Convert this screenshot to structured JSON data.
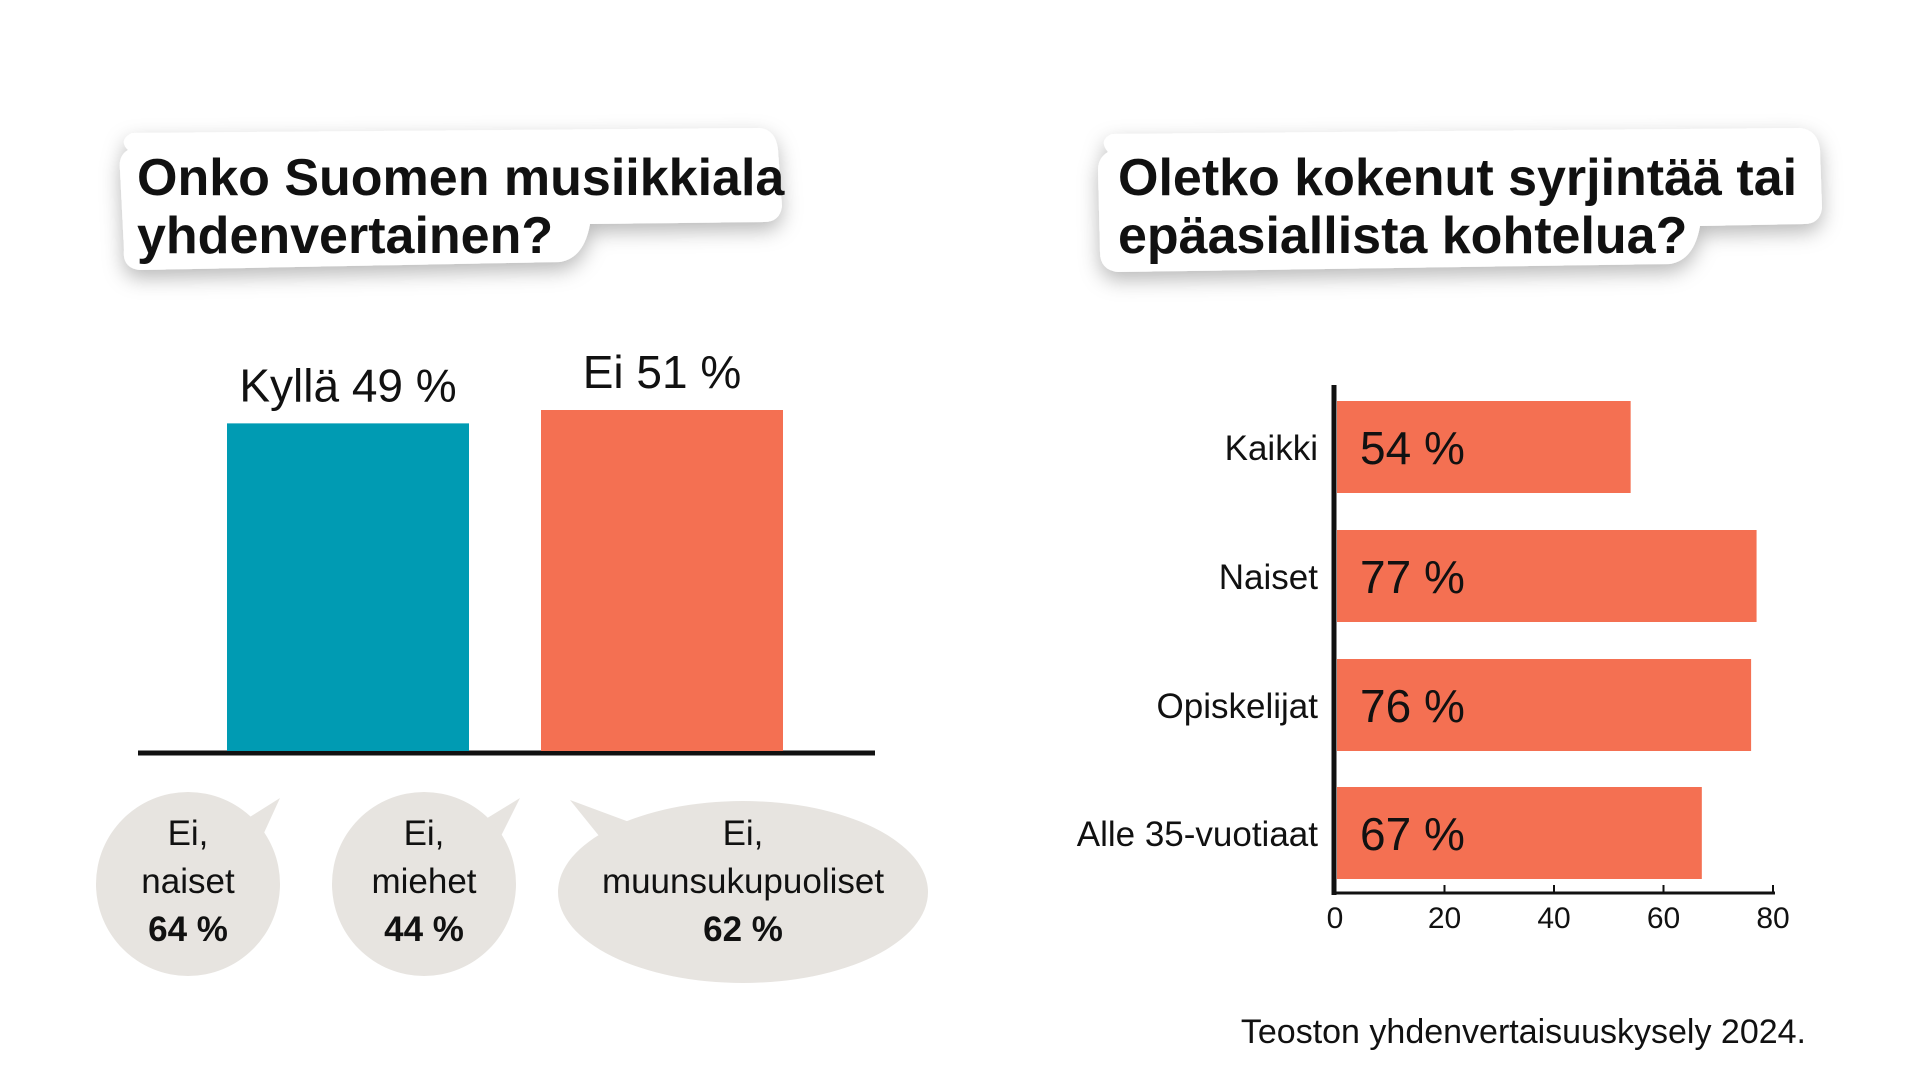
{
  "colors": {
    "yes": "#009BB3",
    "no": "#F47052",
    "bubble": "#E7E4E0",
    "axis": "#111111"
  },
  "left_panel": {
    "title_line1": "Onko Suomen musiikkiala",
    "title_line2": "yhdenvertainen?",
    "bubbles": [
      {
        "line1": "Ei,",
        "line2": "naiset",
        "value": "64 %"
      },
      {
        "line1": "Ei,",
        "line2": "miehet",
        "value": "44 %"
      },
      {
        "line1": "Ei,",
        "line2": "muunsukupuoliset",
        "value": "62 %"
      }
    ]
  },
  "right_panel": {
    "title_line1": "Oletko kokenut syrjintää tai",
    "title_line2": "epäasiallista kohtelua?"
  },
  "source": "Teoston yhdenvertaisuuskysely 2024.",
  "chart_data": [
    {
      "type": "bar",
      "title": "Onko Suomen musiikkiala yhdenvertainen?",
      "categories": [
        "Kyllä",
        "Ei"
      ],
      "values": [
        49,
        51
      ],
      "labels": [
        "Kyllä 49 %",
        "Ei 51 %"
      ],
      "colors": [
        "#009BB3",
        "#F47052"
      ],
      "ylim": [
        0,
        51
      ]
    },
    {
      "type": "bar",
      "orientation": "horizontal",
      "title": "Oletko kokenut syrjintää tai epäasiallista kohtelua?",
      "categories": [
        "Kaikki",
        "Naiset",
        "Opiskelijat",
        "Alle 35-vuotiaat"
      ],
      "values": [
        54,
        77,
        76,
        67
      ],
      "value_labels": [
        "54 %",
        "77 %",
        "76 %",
        "67 %"
      ],
      "xlim": [
        0,
        80
      ],
      "xticks": [
        "0",
        "20",
        "40",
        "60",
        "80"
      ],
      "color": "#F47052",
      "grid": false
    }
  ]
}
